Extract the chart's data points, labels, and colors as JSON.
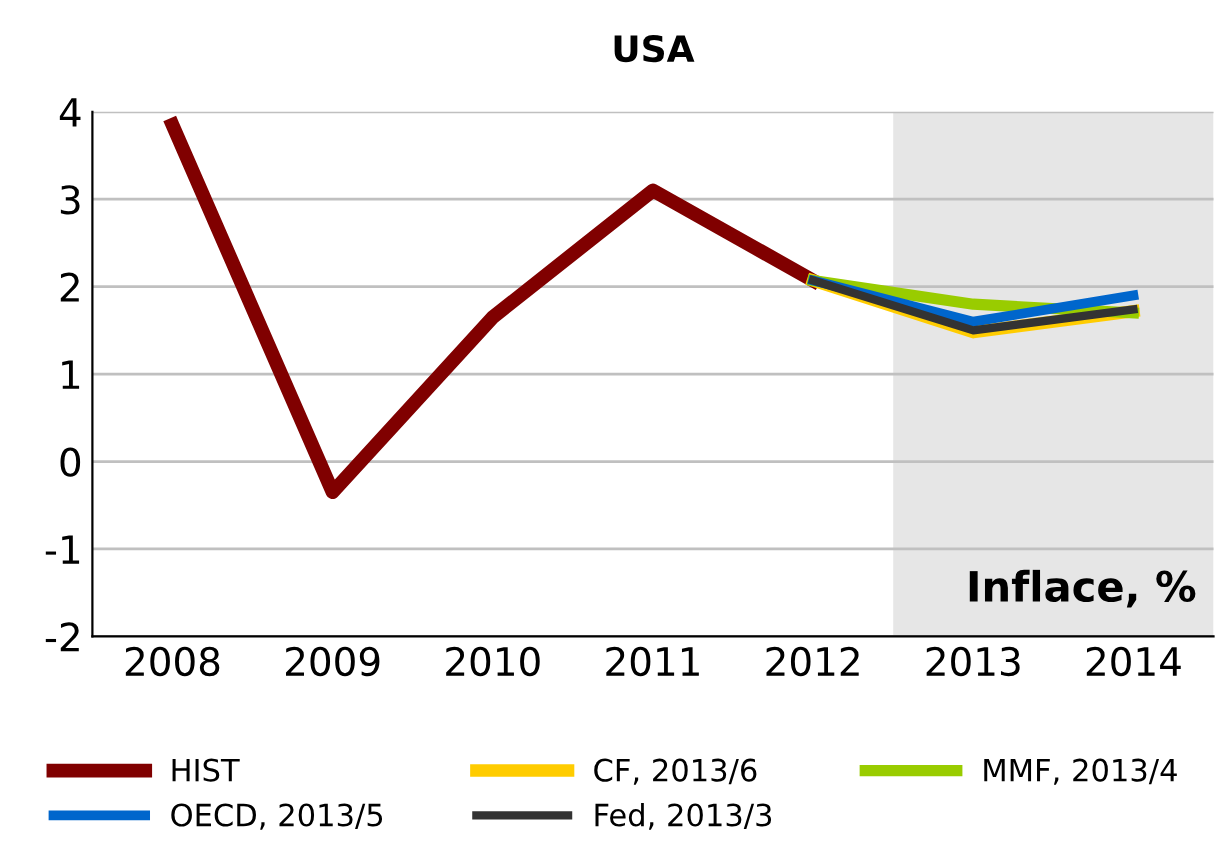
{
  "chart_data": {
    "type": "line",
    "title": "USA",
    "categories": [
      "2008",
      "2009",
      "2010",
      "2011",
      "2012",
      "2013",
      "2014"
    ],
    "series": [
      {
        "name": "HIST",
        "color": "#800000",
        "values": [
          3.85,
          -0.35,
          1.65,
          3.1,
          2.07,
          null,
          null
        ]
      },
      {
        "name": "CF, 2013/6",
        "color": "#ffcc00",
        "values": [
          null,
          null,
          null,
          null,
          2.07,
          1.48,
          1.72
        ]
      },
      {
        "name": "MMF, 2013/4",
        "color": "#99cc00",
        "values": [
          null,
          null,
          null,
          null,
          2.07,
          1.8,
          1.7
        ]
      },
      {
        "name": "OECD, 2013/5",
        "color": "#0066cc",
        "values": [
          null,
          null,
          null,
          null,
          2.07,
          1.6,
          1.9
        ]
      },
      {
        "name": "Fed, 2013/3",
        "color": "#333333",
        "values": [
          null,
          null,
          null,
          null,
          2.07,
          1.5,
          1.74
        ]
      }
    ],
    "ylim": [
      -2,
      4
    ],
    "yticks": [
      -2,
      -1,
      0,
      1,
      2,
      3,
      4
    ],
    "grid": "y",
    "legend": "bottom",
    "bands": [
      {
        "axis": "x",
        "from": "2013",
        "to": "2014",
        "color": "#e6e6e6"
      }
    ],
    "annotations": [
      "Inflace, %"
    ]
  }
}
